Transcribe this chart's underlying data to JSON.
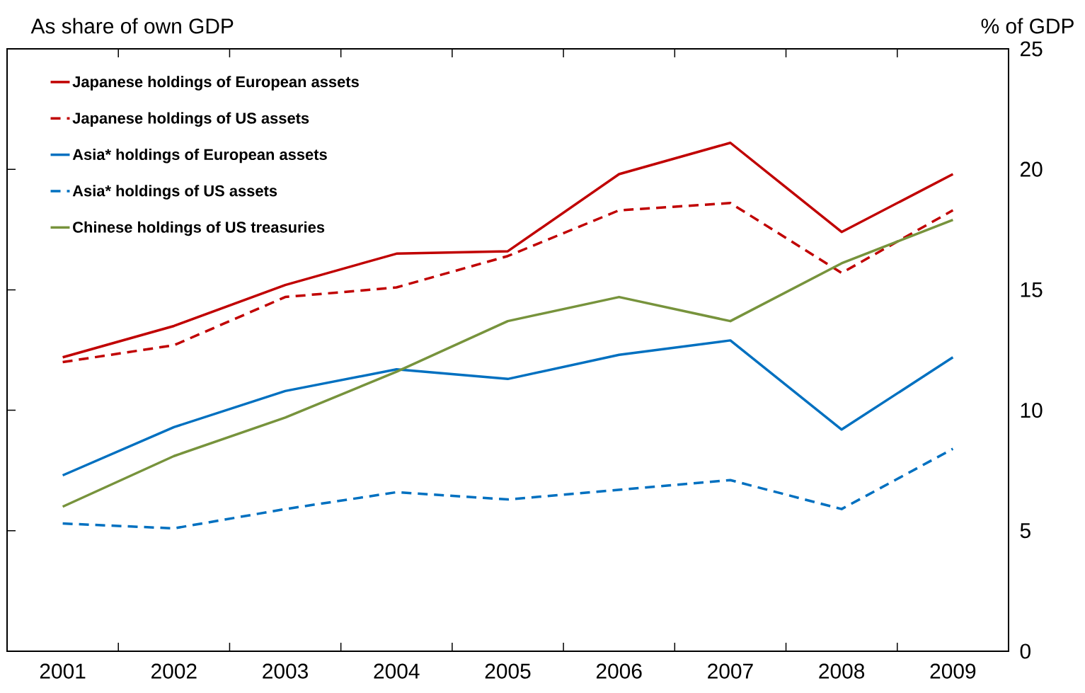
{
  "chart_data": {
    "type": "line",
    "title": "As share of own GDP",
    "ylabel": "% of GDP",
    "categories": [
      "2001",
      "2002",
      "2003",
      "2004",
      "2005",
      "2006",
      "2007",
      "2008",
      "2009"
    ],
    "series": [
      {
        "name": "Japanese holdings of European assets",
        "color": "#c00000",
        "line_style": "solid",
        "values": [
          12.2,
          13.5,
          15.2,
          16.5,
          16.6,
          19.8,
          21.1,
          17.4,
          19.8
        ]
      },
      {
        "name": "Japanese holdings of US assets",
        "color": "#c00000",
        "line_style": "dashed",
        "values": [
          12.0,
          12.7,
          14.7,
          15.1,
          16.4,
          18.3,
          18.6,
          15.7,
          18.3
        ]
      },
      {
        "name": "Asia* holdings of European assets",
        "color": "#0070c0",
        "line_style": "solid",
        "values": [
          7.3,
          9.3,
          10.8,
          11.7,
          11.3,
          12.3,
          12.9,
          9.2,
          12.2
        ]
      },
      {
        "name": "Asia* holdings of US assets",
        "color": "#0070c0",
        "line_style": "dashed",
        "values": [
          5.3,
          5.1,
          5.9,
          6.6,
          6.3,
          6.7,
          7.1,
          5.9,
          8.4
        ]
      },
      {
        "name": "Chinese holdings of US treasuries",
        "color": "#77933c",
        "line_style": "solid",
        "values": [
          6.0,
          8.1,
          9.7,
          11.6,
          13.7,
          14.7,
          13.7,
          16.1,
          17.9
        ]
      }
    ],
    "ylim": [
      0,
      25
    ],
    "yticks": [
      0,
      5,
      10,
      15,
      20,
      25
    ],
    "grid": false,
    "legend": "top left",
    "marker": "none"
  }
}
